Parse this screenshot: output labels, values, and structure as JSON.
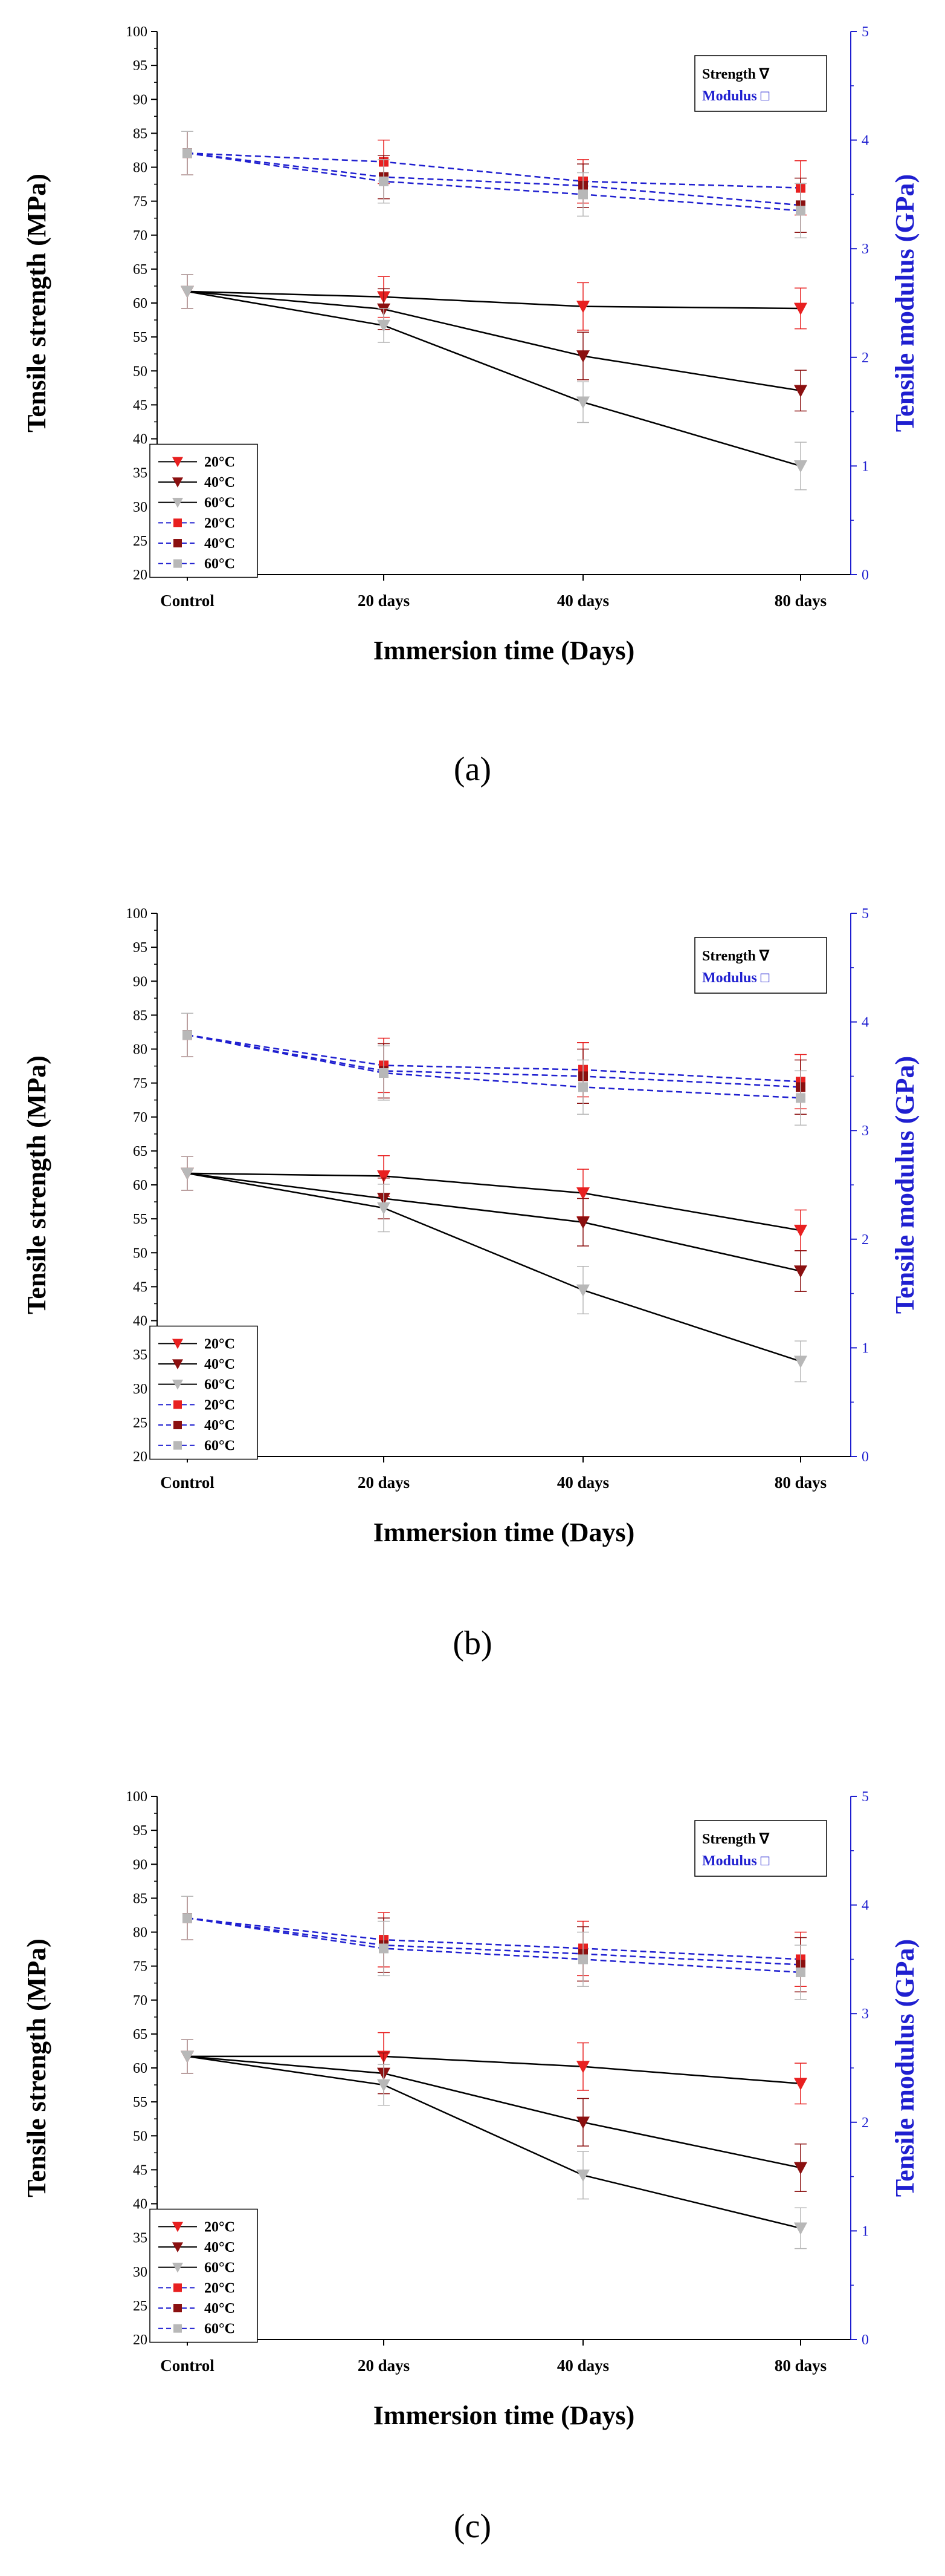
{
  "colors": {
    "axis_left": "#000000",
    "axis_right": "#1f1fd0",
    "modulus_line": "#1f1fd0",
    "c20": "#e82020",
    "c40": "#8b1010",
    "c60": "#b8b8b8"
  },
  "chart_data": [
    {
      "type": "line",
      "caption": "(a)",
      "xlabel": "Immersion time (Days)",
      "ylabel": "Tensile strength (MPa)",
      "y2label": "Tensile modulus (GPa)",
      "categories": [
        "Control",
        "20 days",
        "40 days",
        "80 days"
      ],
      "ylim": [
        20,
        100
      ],
      "yticks": [
        20,
        25,
        30,
        35,
        40,
        45,
        50,
        55,
        60,
        65,
        70,
        75,
        80,
        85,
        90,
        95,
        100
      ],
      "y2lim": [
        0,
        5
      ],
      "y2ticks": [
        0,
        1,
        2,
        3,
        4,
        5
      ],
      "legend_box": {
        "strength": "Strength ∇",
        "modulus": "Modulus □"
      },
      "legend_entries": [
        "20°C",
        "40°C",
        "60°C",
        "20°C",
        "40°C",
        "60°C"
      ],
      "strength_series": [
        {
          "name": "20°C",
          "values": [
            61.7,
            60.9,
            59.5,
            59.2
          ],
          "errors": [
            2.5,
            3.0,
            3.5,
            3.0
          ]
        },
        {
          "name": "40°C",
          "values": [
            61.7,
            59.1,
            52.2,
            47.1
          ],
          "errors": [
            2.5,
            3.0,
            3.5,
            3.0
          ]
        },
        {
          "name": "60°C",
          "values": [
            61.7,
            56.7,
            45.4,
            36.0
          ],
          "errors": [
            2.5,
            2.5,
            3.0,
            3.5
          ]
        }
      ],
      "modulus_series": [
        {
          "name": "20°C",
          "values": [
            3.88,
            3.8,
            3.62,
            3.56
          ],
          "errors": [
            0.2,
            0.2,
            0.2,
            0.25
          ]
        },
        {
          "name": "40°C",
          "values": [
            3.88,
            3.66,
            3.58,
            3.4
          ],
          "errors": [
            0.2,
            0.2,
            0.2,
            0.25
          ]
        },
        {
          "name": "60°C",
          "values": [
            3.88,
            3.62,
            3.5,
            3.35
          ],
          "errors": [
            0.2,
            0.2,
            0.2,
            0.25
          ]
        }
      ]
    },
    {
      "type": "line",
      "caption": "(b)",
      "xlabel": "Immersion time (Days)",
      "ylabel": "Tensile strength (MPa)",
      "y2label": "Tensile modulus (GPa)",
      "categories": [
        "Control",
        "20 days",
        "40 days",
        "80 days"
      ],
      "ylim": [
        20,
        100
      ],
      "yticks": [
        20,
        25,
        30,
        35,
        40,
        45,
        50,
        55,
        60,
        65,
        70,
        75,
        80,
        85,
        90,
        95,
        100
      ],
      "y2lim": [
        0,
        5
      ],
      "y2ticks": [
        0,
        1,
        2,
        3,
        4,
        5
      ],
      "legend_box": {
        "strength": "Strength ∇",
        "modulus": "Modulus □"
      },
      "legend_entries": [
        "20°C",
        "40°C",
        "60°C",
        "20°C",
        "40°C",
        "60°C"
      ],
      "strength_series": [
        {
          "name": "20°C",
          "values": [
            61.7,
            61.3,
            58.8,
            53.3
          ],
          "errors": [
            2.5,
            3.0,
            3.5,
            3.0
          ]
        },
        {
          "name": "40°C",
          "values": [
            61.7,
            58.0,
            54.5,
            47.3
          ],
          "errors": [
            2.5,
            3.0,
            3.5,
            3.0
          ]
        },
        {
          "name": "60°C",
          "values": [
            61.7,
            56.6,
            44.5,
            34.0
          ],
          "errors": [
            2.5,
            3.5,
            3.5,
            3.0
          ]
        }
      ],
      "modulus_series": [
        {
          "name": "20°C",
          "values": [
            3.88,
            3.6,
            3.56,
            3.45
          ],
          "errors": [
            0.2,
            0.25,
            0.25,
            0.25
          ]
        },
        {
          "name": "40°C",
          "values": [
            3.88,
            3.55,
            3.5,
            3.4
          ],
          "errors": [
            0.2,
            0.25,
            0.25,
            0.25
          ]
        },
        {
          "name": "60°C",
          "values": [
            3.88,
            3.53,
            3.4,
            3.3
          ],
          "errors": [
            0.2,
            0.25,
            0.25,
            0.25
          ]
        }
      ]
    },
    {
      "type": "line",
      "caption": "(c)",
      "xlabel": "Immersion time (Days)",
      "ylabel": "Tensile strength (MPa)",
      "y2label": "Tensile modulus (GPa)",
      "categories": [
        "Control",
        "20 days",
        "40 days",
        "80 days"
      ],
      "ylim": [
        20,
        100
      ],
      "yticks": [
        20,
        25,
        30,
        35,
        40,
        45,
        50,
        55,
        60,
        65,
        70,
        75,
        80,
        85,
        90,
        95,
        100
      ],
      "y2lim": [
        0,
        5
      ],
      "y2ticks": [
        0,
        1,
        2,
        3,
        4,
        5
      ],
      "legend_box": {
        "strength": "Strength ∇",
        "modulus": "Modulus □"
      },
      "legend_entries": [
        "20°C",
        "40°C",
        "60°C",
        "20°C",
        "40°C",
        "60°C"
      ],
      "strength_series": [
        {
          "name": "20°C",
          "values": [
            61.7,
            61.7,
            60.2,
            57.7
          ],
          "errors": [
            2.5,
            3.5,
            3.5,
            3.0
          ]
        },
        {
          "name": "40°C",
          "values": [
            61.7,
            59.2,
            52.0,
            45.3
          ],
          "errors": [
            2.5,
            3.0,
            3.5,
            3.5
          ]
        },
        {
          "name": "60°C",
          "values": [
            61.7,
            57.5,
            44.2,
            36.4
          ],
          "errors": [
            2.5,
            3.0,
            3.5,
            3.0
          ]
        }
      ],
      "modulus_series": [
        {
          "name": "20°C",
          "values": [
            3.88,
            3.68,
            3.6,
            3.5
          ],
          "errors": [
            0.2,
            0.25,
            0.25,
            0.25
          ]
        },
        {
          "name": "40°C",
          "values": [
            3.88,
            3.63,
            3.55,
            3.45
          ],
          "errors": [
            0.2,
            0.25,
            0.25,
            0.25
          ]
        },
        {
          "name": "60°C",
          "values": [
            3.88,
            3.6,
            3.5,
            3.38
          ],
          "errors": [
            0.2,
            0.25,
            0.25,
            0.25
          ]
        }
      ]
    }
  ]
}
